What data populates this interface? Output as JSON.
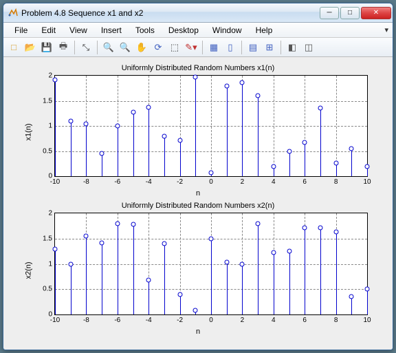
{
  "window": {
    "title": "Problem 4.8 Sequence x1 and x2",
    "buttons": {
      "min": "─",
      "max": "□",
      "close": "✕"
    }
  },
  "menu": {
    "items": [
      "File",
      "Edit",
      "View",
      "Insert",
      "Tools",
      "Desktop",
      "Window",
      "Help"
    ],
    "corner": "▾"
  },
  "toolbar": {
    "icons": [
      {
        "name": "new-figure-icon",
        "glyph": "□",
        "color": "#d8a030"
      },
      {
        "name": "open-icon",
        "glyph": "📂",
        "color": "#d8a030"
      },
      {
        "name": "save-icon",
        "glyph": "💾",
        "color": "#4060c0"
      },
      {
        "name": "print-icon",
        "glyph": "🖶",
        "color": "#555"
      },
      {
        "sep": true
      },
      {
        "name": "edit-plot-icon",
        "glyph": "⤡",
        "color": "#333"
      },
      {
        "sep": true
      },
      {
        "name": "zoom-in-icon",
        "glyph": "🔍",
        "color": "#4060c0"
      },
      {
        "name": "zoom-out-icon",
        "glyph": "🔍",
        "color": "#4060c0"
      },
      {
        "name": "pan-icon",
        "glyph": "✋",
        "color": "#d09000"
      },
      {
        "name": "rotate-3d-icon",
        "glyph": "⟳",
        "color": "#4060c0"
      },
      {
        "name": "data-cursor-icon",
        "glyph": "⬚",
        "color": "#333"
      },
      {
        "name": "brush-icon",
        "glyph": "✎▾",
        "color": "#c03030"
      },
      {
        "sep": true
      },
      {
        "name": "link-data-icon",
        "glyph": "▦",
        "color": "#4060c0"
      },
      {
        "name": "colorbar-icon",
        "glyph": "▯",
        "color": "#4060c0"
      },
      {
        "sep": true
      },
      {
        "name": "legend-icon",
        "glyph": "▤",
        "color": "#4060c0"
      },
      {
        "name": "hide-tools-icon",
        "glyph": "⊞",
        "color": "#4060c0"
      },
      {
        "sep": true
      },
      {
        "name": "dock-icon",
        "glyph": "◧",
        "color": "#555"
      },
      {
        "name": "undock-icon",
        "glyph": "◫",
        "color": "#555"
      }
    ]
  },
  "plots": [
    {
      "title": "Uniformly Distributed Random Numbers x1(n)",
      "ylabel": "x1(n)",
      "xlabel": "n",
      "type": "stem",
      "xlim": [
        -10,
        10
      ],
      "ylim": [
        0,
        2
      ],
      "xticks": [
        -10,
        -8,
        -6,
        -4,
        -2,
        0,
        2,
        4,
        6,
        8,
        10
      ],
      "yticks": [
        0,
        0.5,
        1,
        1.5,
        2
      ],
      "stem_color": "#0000cd",
      "marker_edge_color": "#0000cd",
      "marker_face_color": "#ffffff",
      "grid_color": "#888888",
      "background_color": "#ffffff",
      "x": [
        -10,
        -9,
        -8,
        -7,
        -6,
        -5,
        -4,
        -3,
        -2,
        -1,
        0,
        1,
        2,
        3,
        4,
        5,
        6,
        7,
        8,
        9,
        10
      ],
      "y": [
        1.92,
        1.1,
        1.05,
        0.45,
        1.0,
        1.28,
        1.37,
        0.8,
        0.72,
        1.97,
        0.08,
        1.8,
        1.87,
        1.6,
        0.2,
        0.5,
        0.67,
        1.36,
        0.27,
        0.55,
        0.2
      ]
    },
    {
      "title": "Uniformly Distributed Random Numbers x2(n)",
      "ylabel": "x2(n)",
      "xlabel": "n",
      "type": "stem",
      "xlim": [
        -10,
        10
      ],
      "ylim": [
        0,
        2
      ],
      "xticks": [
        -10,
        -8,
        -6,
        -4,
        -2,
        0,
        2,
        4,
        6,
        8,
        10
      ],
      "yticks": [
        0,
        0.5,
        1,
        1.5,
        2
      ],
      "stem_color": "#0000cd",
      "marker_edge_color": "#0000cd",
      "marker_face_color": "#ffffff",
      "grid_color": "#888888",
      "background_color": "#ffffff",
      "x": [
        -10,
        -9,
        -8,
        -7,
        -6,
        -5,
        -4,
        -3,
        -2,
        -1,
        0,
        1,
        2,
        3,
        4,
        5,
        6,
        7,
        8,
        9,
        10
      ],
      "y": [
        1.3,
        1.0,
        1.55,
        1.42,
        1.8,
        1.78,
        0.68,
        1.4,
        0.4,
        0.08,
        1.5,
        1.03,
        1.0,
        1.8,
        1.23,
        1.26,
        1.72,
        1.72,
        1.63,
        0.35,
        0.5
      ]
    }
  ]
}
